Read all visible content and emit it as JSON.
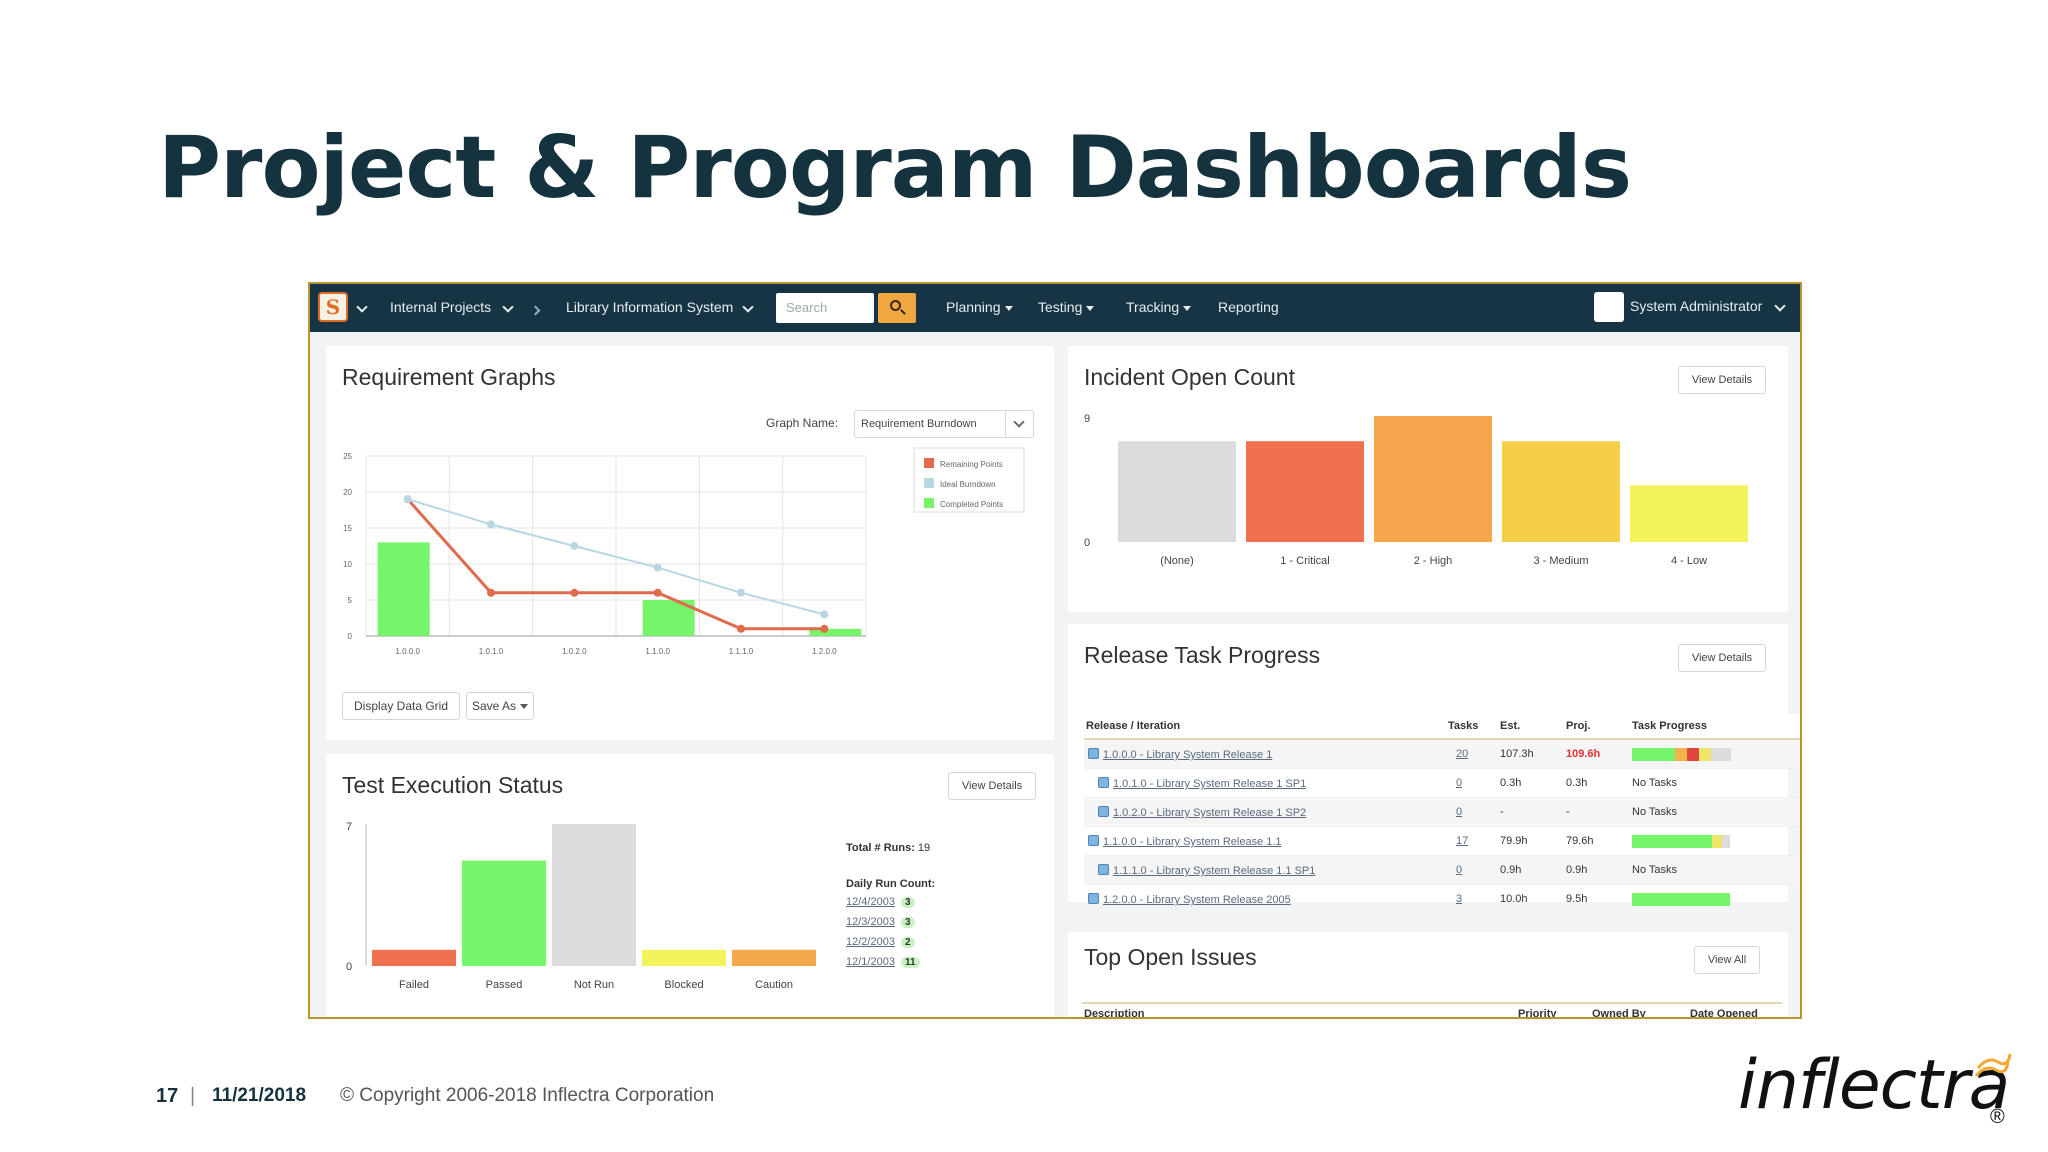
{
  "slide": {
    "title": "Project & Program Dashboards",
    "page_number": "17",
    "separator": "|",
    "date": "11/21/2018",
    "copyright": "© Copyright 2006-2018 Inflectra Corporation",
    "brand": "inflectra",
    "brand_mark": "®"
  },
  "topbar": {
    "logo_letter": "S",
    "project_group": "Internal Projects",
    "project": "Library Information System",
    "search_placeholder": "Search",
    "menus": [
      "Planning",
      "Testing",
      "Tracking",
      "Reporting"
    ],
    "user": "System Administrator"
  },
  "requirement_graphs": {
    "title": "Requirement Graphs",
    "graph_name_label": "Graph Name:",
    "graph_name_value": "Requirement Burndown",
    "display_grid_button": "Display Data Grid",
    "save_as_button": "Save As",
    "chart_data": {
      "type": "bar",
      "categories": [
        "1.0.0.0",
        "1.0.1.0",
        "1.0.2.0",
        "1.1.0.0",
        "1.1.1.0",
        "1.2.0.0"
      ],
      "ylim": [
        0,
        25
      ],
      "yticks": [
        "25",
        "20",
        "15",
        "10",
        "5",
        "0"
      ],
      "series": [
        {
          "name": "Remaining Points",
          "kind": "line",
          "color": "#e06a4c",
          "values": [
            19,
            6,
            6,
            6,
            1,
            1
          ]
        },
        {
          "name": "Ideal Burndown",
          "kind": "line",
          "color": "#b9d6e3",
          "values": [
            19,
            15.5,
            12.5,
            9.5,
            6,
            3
          ]
        },
        {
          "name": "Completed Points",
          "kind": "bar",
          "color": "#76f46a",
          "values": [
            13,
            0,
            0,
            5,
            0,
            1
          ]
        }
      ],
      "legend_position": "top-right"
    }
  },
  "incident_open_count": {
    "title": "Incident Open Count",
    "view_button": "View Details",
    "chart_data": {
      "type": "bar",
      "categories": [
        "(None)",
        "1 - Critical",
        "2 - High",
        "3 - Medium",
        "4 - Low"
      ],
      "values": [
        8,
        8,
        10,
        8,
        4.5
      ],
      "colors": [
        "#dcdcdc",
        "#f07150",
        "#f5a64a",
        "#f6cf4a",
        "#f2f25a"
      ],
      "yticks": [
        "9",
        "0"
      ],
      "ylim": [
        0,
        10
      ]
    }
  },
  "release_task_progress": {
    "title": "Release Task Progress",
    "view_button": "View Details",
    "headers": [
      "Release / Iteration",
      "Tasks",
      "Est.",
      "Proj.",
      "Task Progress"
    ],
    "rows": [
      {
        "name": "1.0.0.0 - Library System Release 1",
        "tasks": "20",
        "est": "107.3h",
        "proj": "109.6h",
        "progress": "",
        "indent": 0,
        "proj_red": true,
        "bars": [
          {
            "c": "#76f46a",
            "w": 0.44
          },
          {
            "c": "#f2b34a",
            "w": 0.12
          },
          {
            "c": "#e0463a",
            "w": 0.12
          },
          {
            "c": "#efe56a",
            "w": 0.12
          },
          {
            "c": "#dcdcdc",
            "w": 0.2
          }
        ]
      },
      {
        "name": "1.0.1.0 - Library System Release 1 SP1",
        "tasks": "0",
        "est": "0.3h",
        "proj": "0.3h",
        "progress": "No Tasks",
        "indent": 1,
        "proj_red": false,
        "bars": []
      },
      {
        "name": "1.0.2.0 - Library System Release 1 SP2",
        "tasks": "0",
        "est": "-",
        "proj": "-",
        "progress": "No Tasks",
        "indent": 1,
        "proj_red": false,
        "bars": []
      },
      {
        "name": "1.1.0.0 - Library System Release 1.1",
        "tasks": "17",
        "est": "79.9h",
        "proj": "79.6h",
        "progress": "",
        "indent": 0,
        "proj_red": false,
        "bars": [
          {
            "c": "#76f46a",
            "w": 0.82
          },
          {
            "c": "#efe56a",
            "w": 0.1
          },
          {
            "c": "#dcdcdc",
            "w": 0.08
          }
        ]
      },
      {
        "name": "1.1.1.0 - Library System Release 1.1 SP1",
        "tasks": "0",
        "est": "0.9h",
        "proj": "0.9h",
        "progress": "No Tasks",
        "indent": 1,
        "proj_red": false,
        "bars": []
      },
      {
        "name": "1.2.0.0 - Library System Release 2005",
        "tasks": "3",
        "est": "10.0h",
        "proj": "9.5h",
        "progress": "",
        "indent": 0,
        "proj_red": false,
        "bars": [
          {
            "c": "#76f46a",
            "w": 1.0
          }
        ]
      }
    ]
  },
  "test_execution_status": {
    "title": "Test Execution Status",
    "view_button": "View Details",
    "total_runs_label": "Total # Runs:",
    "total_runs_value": "19",
    "daily_run_label": "Daily Run Count:",
    "daily_runs": [
      {
        "date": "12/4/2003",
        "count": "3"
      },
      {
        "date": "12/3/2003",
        "count": "3"
      },
      {
        "date": "12/2/2003",
        "count": "2"
      },
      {
        "date": "12/1/2003",
        "count": "11"
      }
    ],
    "chart_data": {
      "type": "bar",
      "categories": [
        "Failed",
        "Passed",
        "Not Run",
        "Blocked",
        "Caution"
      ],
      "values": [
        0.8,
        5.2,
        7,
        0.8,
        0.8
      ],
      "colors": [
        "#f07150",
        "#76f46a",
        "#dcdcdc",
        "#f2f25a",
        "#f2a94a"
      ],
      "yticks": [
        "7",
        "0"
      ],
      "ylim": [
        0,
        7
      ]
    }
  },
  "top_open_issues": {
    "title": "Top Open Issues",
    "view_button": "View All",
    "headers": [
      "Description",
      "Priority",
      "Owned By",
      "Date Opened"
    ]
  }
}
